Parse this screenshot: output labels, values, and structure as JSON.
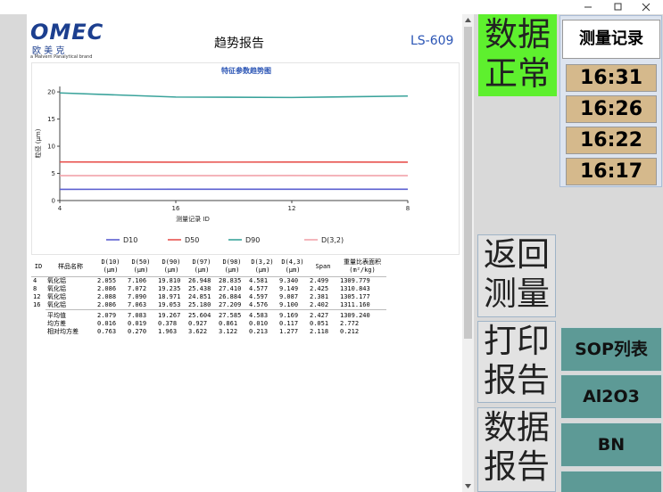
{
  "report": {
    "logo_brand": "OMEC",
    "logo_cn": "欧 美 克",
    "logo_tagline": "a Malvern Panalytical brand",
    "title": "趋势报告",
    "model": "LS-609"
  },
  "chart_data": {
    "type": "line",
    "title": "特征参数趋势图",
    "x_label": "测量记录 ID",
    "y_label": "粒径 (μm)",
    "categories": [
      "4",
      "16",
      "12",
      "8"
    ],
    "series": [
      {
        "name": "D10",
        "color": "#5b5fd0",
        "values": [
          2.055,
          2.086,
          2.088,
          2.086
        ]
      },
      {
        "name": "D50",
        "color": "#e8534f",
        "values": [
          7.106,
          7.063,
          7.09,
          7.072
        ]
      },
      {
        "name": "D90",
        "color": "#3aa39b",
        "values": [
          19.81,
          19.053,
          18.971,
          19.235
        ]
      },
      {
        "name": "D(3,2)",
        "color": "#f2a3ab",
        "values": [
          4.581,
          4.576,
          4.597,
          4.577
        ]
      }
    ],
    "ylim": [
      0,
      21
    ],
    "yticks": [
      0,
      5,
      10,
      15,
      20
    ],
    "legend": "bottom"
  },
  "table": {
    "headers": [
      "ID",
      "样品名称",
      "D(10) (μm)",
      "D(50) (μm)",
      "D(90) (μm)",
      "D(97) (μm)",
      "D(98) (μm)",
      "D(3,2) (μm)",
      "D(4,3) (μm)",
      "Span",
      "重量比表面积 (m²/kg)"
    ],
    "rows": [
      [
        "4",
        "氧化铝",
        "2.055",
        "7.106",
        "19.810",
        "26.948",
        "28.835",
        "4.581",
        "9.340",
        "2.499",
        "1309.779"
      ],
      [
        "8",
        "氧化铝",
        "2.086",
        "7.072",
        "19.235",
        "25.438",
        "27.410",
        "4.577",
        "9.149",
        "2.425",
        "1310.843"
      ],
      [
        "12",
        "氧化铝",
        "2.088",
        "7.090",
        "18.971",
        "24.851",
        "26.884",
        "4.597",
        "9.087",
        "2.381",
        "1305.177"
      ],
      [
        "16",
        "氧化铝",
        "2.086",
        "7.063",
        "19.053",
        "25.180",
        "27.209",
        "4.576",
        "9.100",
        "2.402",
        "1311.160"
      ]
    ],
    "stats": [
      [
        "平均值",
        "2.079",
        "7.083",
        "19.267",
        "25.604",
        "27.585",
        "4.583",
        "9.169",
        "2.427",
        "1309.240"
      ],
      [
        "均方差",
        "0.016",
        "0.019",
        "0.378",
        "0.927",
        "0.861",
        "0.010",
        "0.117",
        "0.051",
        "2.772"
      ],
      [
        "相对均方差",
        "0.763",
        "0.270",
        "1.963",
        "3.622",
        "3.122",
        "0.213",
        "1.277",
        "2.118",
        "0.212"
      ]
    ]
  },
  "sidebar": {
    "status": "数据正常",
    "back": "返回测量",
    "print": "打印报告",
    "data_report": "数据报告",
    "records_title": "测量记录",
    "records": [
      "16:31",
      "16:26",
      "16:22",
      "16:17"
    ],
    "sop_title": "SOP列表",
    "sop_items": [
      "Al2O3",
      "BN"
    ]
  }
}
